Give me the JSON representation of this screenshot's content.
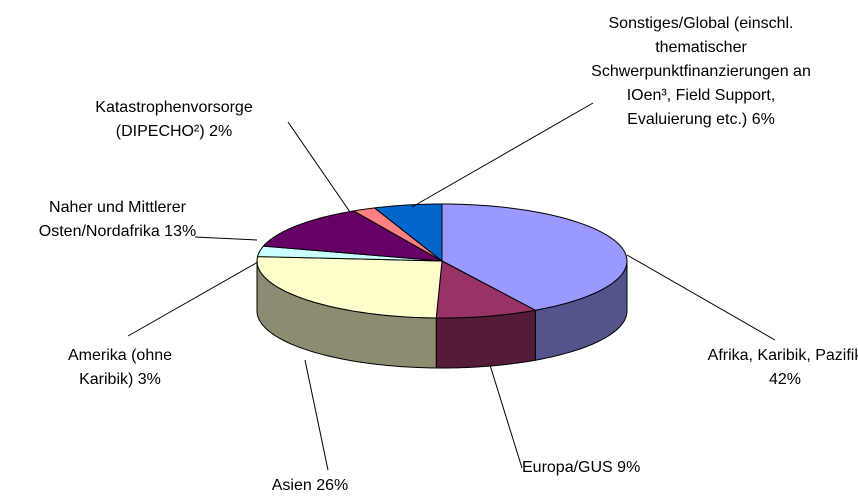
{
  "chart_data": {
    "type": "pie3d",
    "categories": [
      "Afrika, Karibik, Pazifik",
      "Europa/GUS",
      "Asien",
      "Amerika (ohne Karibik)",
      "Naher und Mittlerer Osten/Nordafrika",
      "Katastrophenvorsorge (DIPECHO²)",
      "Sonstiges/Global (einschl. thematischer Schwerpunktfinanzierungen an IOen³, Field Support, Evaluierung etc.)"
    ],
    "values": [
      42,
      9,
      26,
      3,
      13,
      2,
      6
    ],
    "value_labels": [
      "42%",
      "9%",
      "26%",
      "3%",
      "13%",
      "2%",
      "6%"
    ],
    "colors": [
      "#9999ff",
      "#993366",
      "#ffffcc",
      "#ccffff",
      "#660066",
      "#ff8080",
      "#0066cc"
    ]
  }
}
